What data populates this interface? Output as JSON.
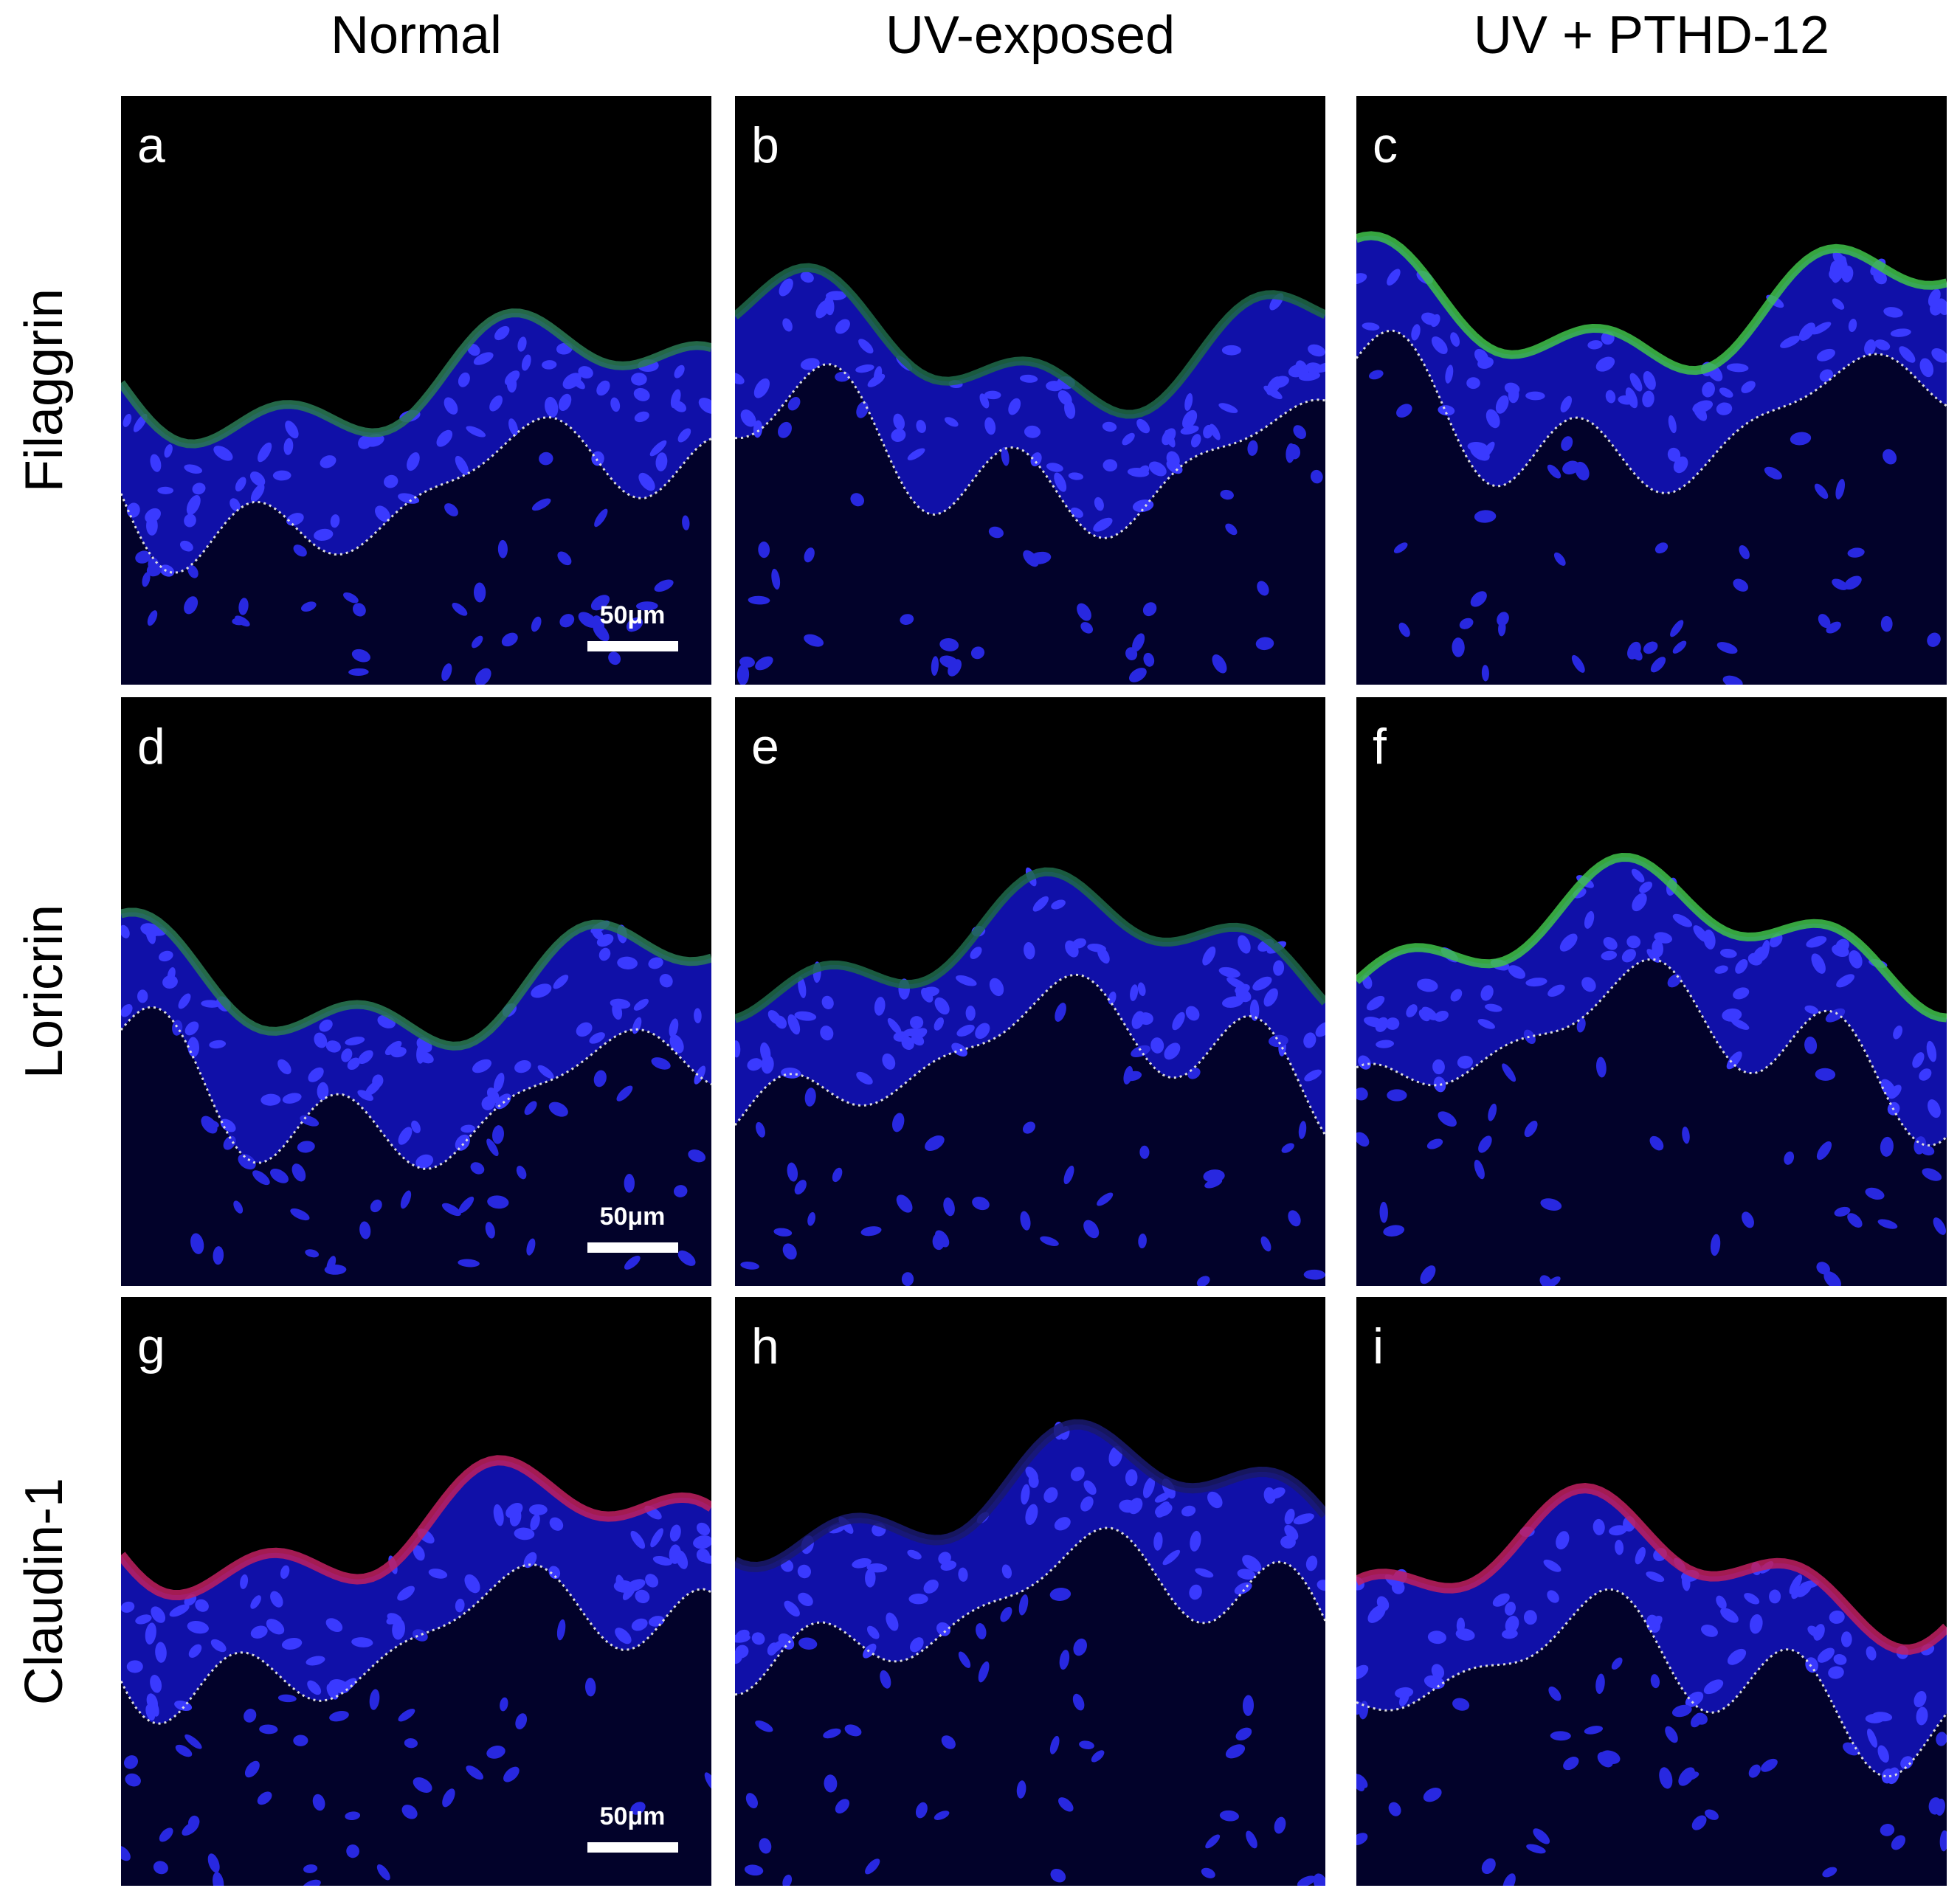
{
  "columns": [
    "Normal",
    "UV-exposed",
    "UV + PTHD-12"
  ],
  "rows": [
    "Filaggrin",
    "Loricrin",
    "Claudin-1"
  ],
  "panels": [
    {
      "letter": "a",
      "scale_bar": "50μm"
    },
    {
      "letter": "b"
    },
    {
      "letter": "c"
    },
    {
      "letter": "d",
      "scale_bar": "50μm"
    },
    {
      "letter": "e"
    },
    {
      "letter": "f"
    },
    {
      "letter": "g",
      "scale_bar": "50μm"
    },
    {
      "letter": "h"
    },
    {
      "letter": "i"
    }
  ]
}
